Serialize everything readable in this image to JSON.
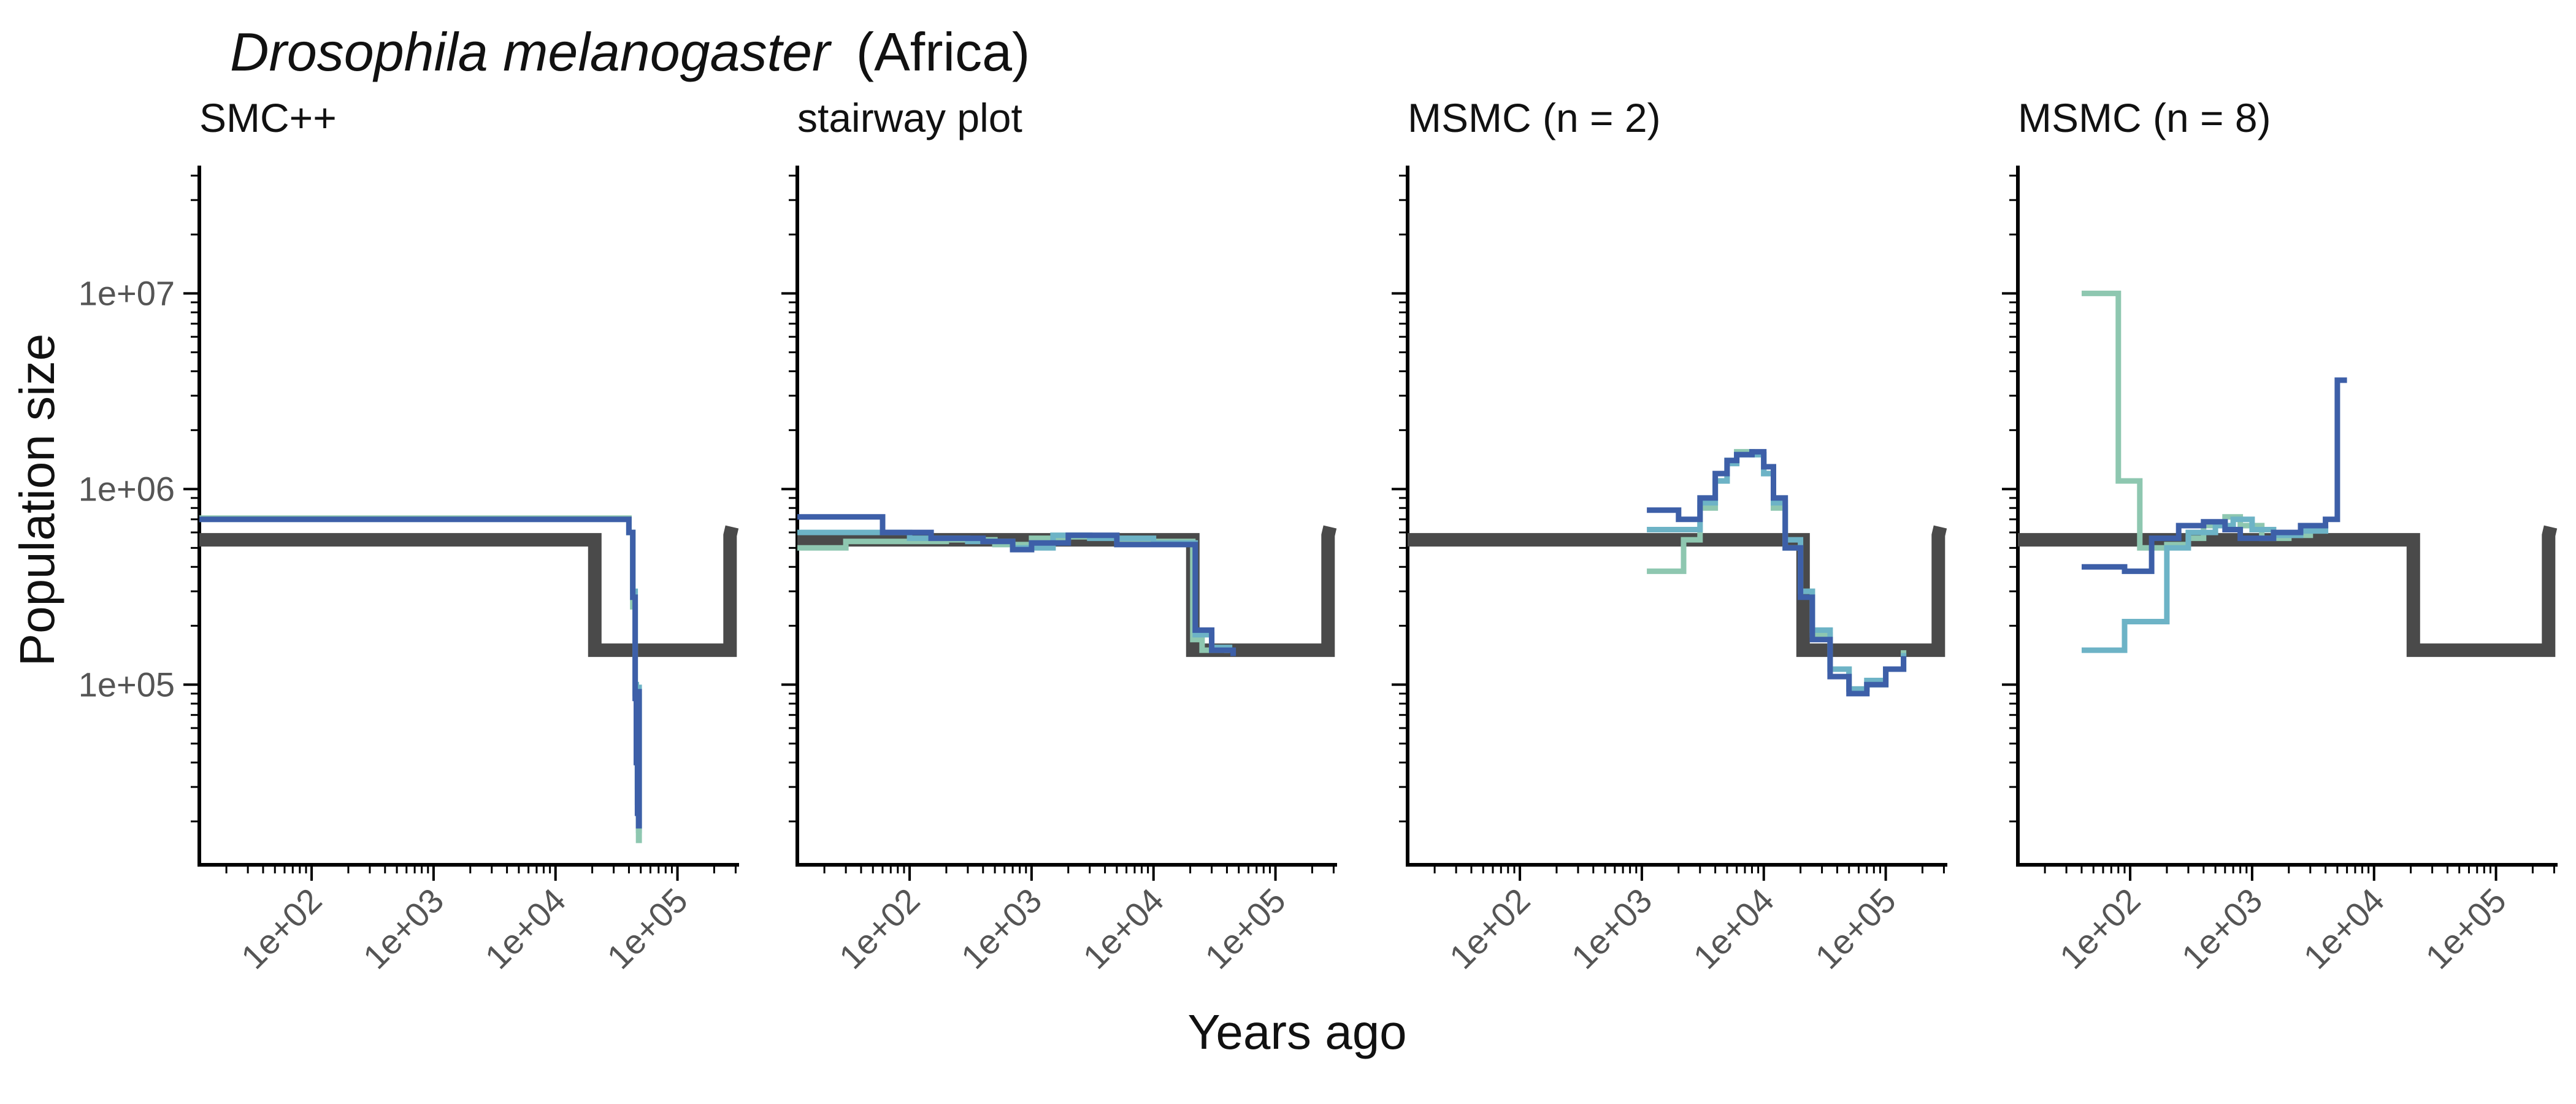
{
  "figure": {
    "title_species": "Drosophila melanogaster",
    "title_region": "(Africa)",
    "xlabel": "Years ago",
    "ylabel": "Population size"
  },
  "colors": {
    "truth": "#4a4a4a",
    "rep_dark_blue": "#3d5fa8",
    "rep_light_blue": "#6db3c6",
    "rep_green": "#8ec7b0"
  },
  "chart_data": [
    {
      "type": "line",
      "title": "SMC++",
      "xscale": "log",
      "yscale": "log",
      "xlim": [
        12,
        320000
      ],
      "ylim": [
        12000,
        45000000
      ],
      "x_ticks": [
        "1e+02",
        "1e+03",
        "1e+04",
        "1e+05"
      ],
      "y_ticks": [
        "1e+05",
        "1e+06",
        "1e+07"
      ],
      "true_model": {
        "name": "true model",
        "x": [
          12,
          21000,
          21000,
          270000,
          270000,
          280000
        ],
        "y": [
          550000,
          550000,
          150000,
          150000,
          580000,
          640000
        ]
      },
      "series": [
        {
          "color": "rep_light_blue",
          "x": [
            12,
            40000,
            40000,
            43000,
            45000,
            46000,
            47000,
            48000,
            48500
          ],
          "y": [
            700000,
            700000,
            600000,
            300000,
            100000,
            50000,
            30000,
            18000,
            100000
          ]
        },
        {
          "color": "rep_green",
          "x": [
            12,
            40000,
            40000,
            43000,
            45000,
            46000,
            47000,
            48000,
            48500
          ],
          "y": [
            710000,
            710000,
            600000,
            250000,
            90000,
            40000,
            25000,
            16000,
            90000
          ]
        },
        {
          "color": "rep_dark_blue",
          "x": [
            12,
            40000,
            40000,
            43000,
            45000,
            46000,
            47000,
            48000,
            48500
          ],
          "y": [
            700000,
            700000,
            600000,
            280000,
            85000,
            40000,
            22000,
            19000,
            95000
          ]
        }
      ]
    },
    {
      "type": "line",
      "title": "stairway plot",
      "xscale": "log",
      "yscale": "log",
      "xlim": [
        12,
        320000
      ],
      "ylim": [
        12000,
        45000000
      ],
      "x_ticks": [
        "1e+02",
        "1e+03",
        "1e+04",
        "1e+05"
      ],
      "y_ticks": [
        "1e+05",
        "1e+06",
        "1e+07"
      ],
      "true_model": {
        "name": "true model",
        "x": [
          12,
          21000,
          21000,
          270000,
          270000,
          280000
        ],
        "y": [
          550000,
          550000,
          150000,
          150000,
          580000,
          640000
        ]
      },
      "series": [
        {
          "color": "rep_green",
          "x": [
            12,
            30,
            30,
            200,
            500,
            1000,
            2000,
            5000,
            20000,
            21000,
            25000,
            40000
          ],
          "y": [
            500000,
            500000,
            540000,
            550000,
            520000,
            560000,
            570000,
            540000,
            540000,
            170000,
            150000,
            145000
          ]
        },
        {
          "color": "rep_light_blue",
          "x": [
            12,
            40,
            100,
            300,
            700,
            1500,
            3000,
            10000,
            21000,
            22000,
            30000,
            42000
          ],
          "y": [
            600000,
            600000,
            560000,
            540000,
            500000,
            580000,
            560000,
            530000,
            530000,
            180000,
            155000,
            150000
          ]
        },
        {
          "color": "rep_dark_blue",
          "x": [
            12,
            60,
            60,
            150,
            400,
            700,
            1000,
            2000,
            3000,
            5000,
            21000,
            22000,
            30000,
            45000
          ],
          "y": [
            720000,
            720000,
            600000,
            560000,
            540000,
            490000,
            530000,
            580000,
            580000,
            520000,
            520000,
            190000,
            150000,
            140000
          ]
        }
      ]
    },
    {
      "type": "line",
      "title": "MSMC (n = 2)",
      "xscale": "log",
      "yscale": "log",
      "xlim": [
        12,
        320000
      ],
      "ylim": [
        12000,
        45000000
      ],
      "x_ticks": [
        "1e+02",
        "1e+03",
        "1e+04",
        "1e+05"
      ],
      "y_ticks": [
        "1e+05",
        "1e+06",
        "1e+07"
      ],
      "true_model": {
        "name": "true model",
        "x": [
          12,
          21000,
          21000,
          270000,
          270000,
          280000
        ],
        "y": [
          550000,
          550000,
          150000,
          150000,
          580000,
          640000
        ]
      },
      "series": [
        {
          "color": "rep_green",
          "x": [
            1100,
            2200,
            3000,
            4000,
            5000,
            6000,
            8000,
            10000,
            12000,
            15000,
            20000,
            25000,
            35000,
            50000,
            70000,
            100000,
            140000
          ],
          "y": [
            380000,
            550000,
            800000,
            1100000,
            1400000,
            1550000,
            1500000,
            1200000,
            800000,
            500000,
            300000,
            180000,
            120000,
            95000,
            100000,
            120000,
            150000
          ]
        },
        {
          "color": "rep_light_blue",
          "x": [
            1100,
            2000,
            3000,
            4000,
            5000,
            6000,
            8000,
            10000,
            12000,
            15000,
            20000,
            25000,
            35000,
            50000,
            70000,
            100000,
            140000
          ],
          "y": [
            620000,
            620000,
            850000,
            1100000,
            1350000,
            1500000,
            1500000,
            1200000,
            850000,
            550000,
            300000,
            190000,
            120000,
            95000,
            105000,
            120000,
            145000
          ]
        },
        {
          "color": "rep_dark_blue",
          "x": [
            1100,
            2000,
            3000,
            4000,
            5000,
            6000,
            8000,
            10000,
            12000,
            15000,
            20000,
            25000,
            35000,
            50000,
            70000,
            100000,
            140000
          ],
          "y": [
            780000,
            700000,
            900000,
            1200000,
            1400000,
            1500000,
            1550000,
            1300000,
            900000,
            500000,
            280000,
            170000,
            110000,
            90000,
            100000,
            120000,
            140000
          ]
        }
      ]
    },
    {
      "type": "line",
      "title": "MSMC (n = 8)",
      "xscale": "log",
      "yscale": "log",
      "xlim": [
        12,
        320000
      ],
      "ylim": [
        12000,
        45000000
      ],
      "x_ticks": [
        "1e+02",
        "1e+03",
        "1e+04",
        "1e+05"
      ],
      "y_ticks": [
        "1e+05",
        "1e+06",
        "1e+07"
      ],
      "true_model": {
        "name": "true model",
        "x": [
          12,
          21000,
          21000,
          270000,
          270000,
          280000
        ],
        "y": [
          550000,
          550000,
          150000,
          150000,
          580000,
          640000
        ]
      },
      "series": [
        {
          "color": "rep_green",
          "x": [
            40,
            80,
            80,
            120,
            120,
            200,
            300,
            400,
            600,
            800,
            1200,
            2000,
            3000
          ],
          "y": [
            10000000,
            10000000,
            1100000,
            1100000,
            500000,
            520000,
            560000,
            650000,
            720000,
            650000,
            560000,
            580000,
            620000
          ]
        },
        {
          "color": "rep_light_blue",
          "x": [
            40,
            90,
            90,
            140,
            200,
            300,
            500,
            700,
            1000,
            1500,
            2500,
            4000
          ],
          "y": [
            150000,
            150000,
            210000,
            210000,
            500000,
            600000,
            650000,
            700000,
            620000,
            580000,
            610000,
            650000
          ]
        },
        {
          "color": "rep_dark_blue",
          "x": [
            40,
            90,
            90,
            150,
            250,
            400,
            600,
            800,
            1000,
            1500,
            2500,
            4000,
            5000,
            5000,
            6000
          ],
          "y": [
            400000,
            400000,
            380000,
            560000,
            650000,
            680000,
            620000,
            560000,
            560000,
            600000,
            650000,
            700000,
            700000,
            3600000,
            3600000
          ]
        }
      ]
    }
  ]
}
